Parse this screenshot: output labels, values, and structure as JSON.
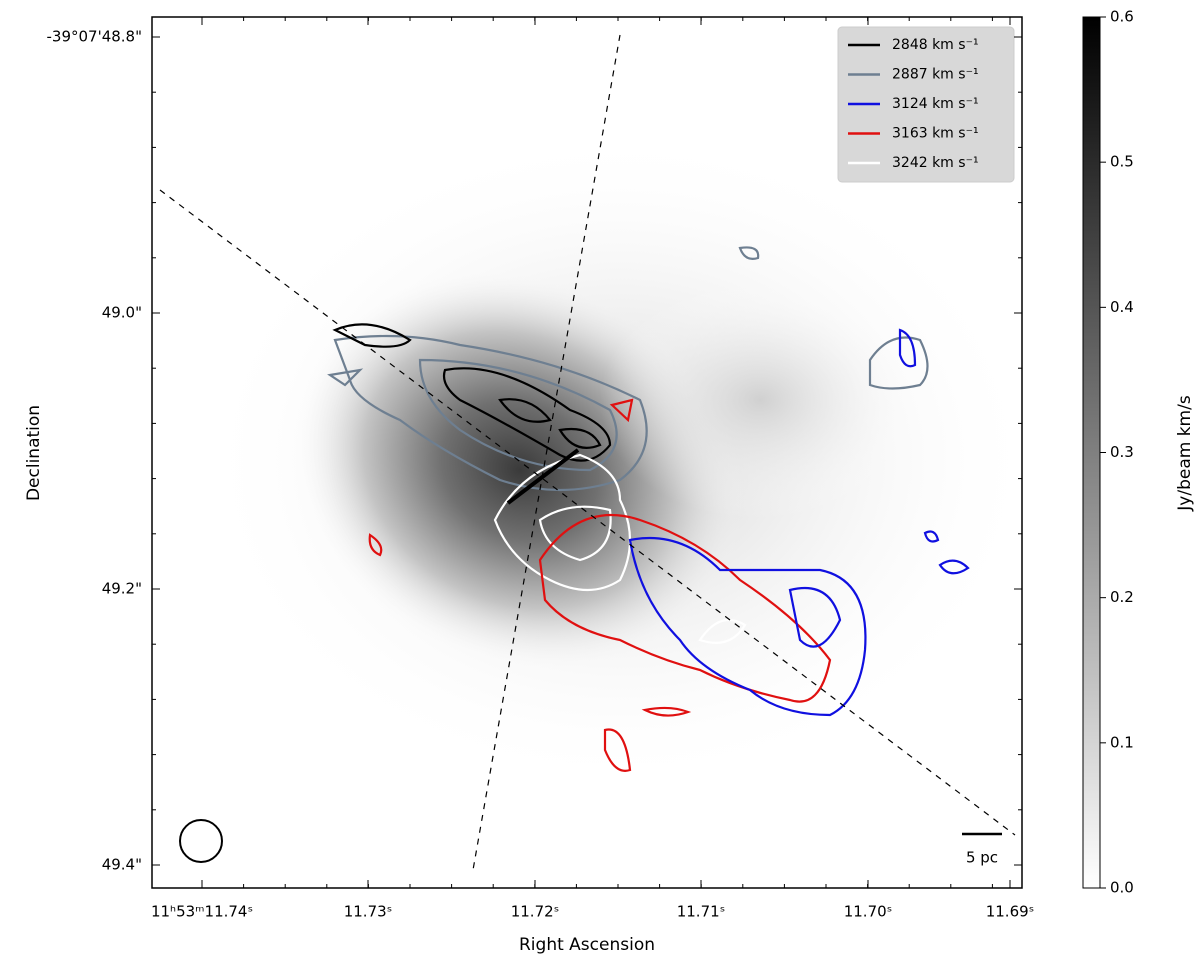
{
  "chart_data": {
    "type": "image",
    "xlabel": "Right Ascension",
    "ylabel": "Declination",
    "xtick_labels": [
      "11ʰ53ᵐ11.74ˢ",
      "11.73ˢ",
      "11.72ˢ",
      "11.71ˢ",
      "11.70ˢ",
      "11.69ˢ"
    ],
    "ytick_labels": [
      "-39°07'48.8\"",
      "49.0\"",
      "49.2\"",
      "49.4\""
    ],
    "series": [
      {
        "name": "2848 km s⁻¹",
        "color": "#000000"
      },
      {
        "name": "2887 km s⁻¹",
        "color": "#6e7f91"
      },
      {
        "name": "3124 km s⁻¹",
        "color": "#1010e0"
      },
      {
        "name": "3163 km s⁻¹",
        "color": "#e01010"
      },
      {
        "name": "3242 km s⁻¹",
        "color": "#ffffff"
      }
    ],
    "scale_bar": "5 pc",
    "colorbar": {
      "label": "Jy/beam km/s",
      "lim": [
        0,
        0.6
      ],
      "ticks": [
        {
          "value": 0,
          "label": "0.0"
        },
        {
          "value": 0.1,
          "label": "0.1"
        },
        {
          "value": 0.2,
          "label": "0.2"
        },
        {
          "value": 0.3,
          "label": "0.3"
        },
        {
          "value": 0.4,
          "label": "0.4"
        },
        {
          "value": 0.5,
          "label": "0.5"
        },
        {
          "value": 0.6,
          "label": "0.6"
        }
      ]
    }
  }
}
